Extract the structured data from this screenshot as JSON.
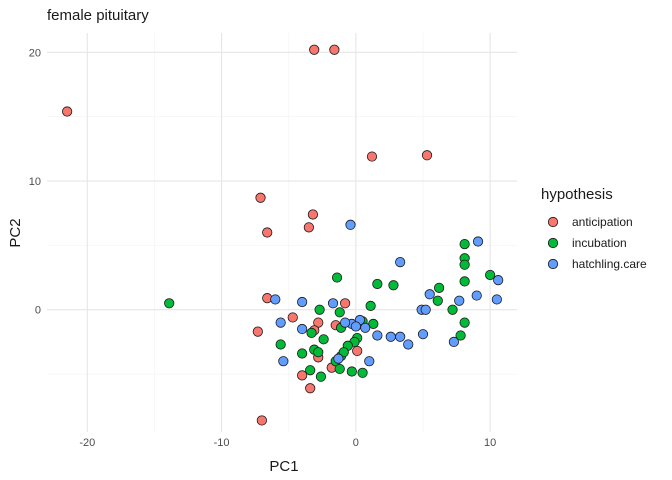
{
  "chart_data": {
    "type": "scatter",
    "title": "female pituitary",
    "xlabel": "PC1",
    "ylabel": "PC2",
    "xlim": [
      -23,
      12
    ],
    "ylim": [
      -9.5,
      21.5
    ],
    "x_ticks": [
      -20,
      -10,
      0,
      10
    ],
    "y_ticks": [
      0,
      10,
      20
    ],
    "x_minor": [
      -15,
      -5,
      5
    ],
    "y_minor": [
      -5,
      5,
      15
    ],
    "grid": true,
    "legend": {
      "title": "hypothesis",
      "position": "right"
    },
    "series": [
      {
        "name": "anticipation",
        "color": "#F8766D",
        "points": [
          [
            -21.5,
            15.4
          ],
          [
            -3.1,
            20.2
          ],
          [
            -1.6,
            20.2
          ],
          [
            1.2,
            11.9
          ],
          [
            5.3,
            12.0
          ],
          [
            -7.1,
            8.7
          ],
          [
            -6.6,
            6.0
          ],
          [
            -3.2,
            7.4
          ],
          [
            -3.5,
            6.4
          ],
          [
            -6.6,
            0.9
          ],
          [
            -4.7,
            -0.6
          ],
          [
            -7.3,
            -1.7
          ],
          [
            -2.8,
            -1.0
          ],
          [
            -0.8,
            0.5
          ],
          [
            -2.8,
            -3.7
          ],
          [
            -4.0,
            -5.1
          ],
          [
            -3.4,
            -6.1
          ],
          [
            -1.8,
            -4.5
          ],
          [
            0.1,
            -3.2
          ],
          [
            -7.0,
            -8.6
          ],
          [
            -1.5,
            -1.2
          ],
          [
            -3.1,
            -1.6
          ]
        ]
      },
      {
        "name": "incubation",
        "color": "#00BA38",
        "points": [
          [
            -13.9,
            0.5
          ],
          [
            -1.4,
            2.5
          ],
          [
            1.6,
            2.0
          ],
          [
            2.8,
            1.9
          ],
          [
            6.2,
            1.7
          ],
          [
            8.1,
            5.1
          ],
          [
            8.1,
            4.0
          ],
          [
            8.1,
            3.5
          ],
          [
            10.0,
            2.7
          ],
          [
            6.1,
            0.7
          ],
          [
            8.1,
            2.2
          ],
          [
            7.2,
            0.0
          ],
          [
            8.1,
            -1.0
          ],
          [
            7.8,
            -2.0
          ],
          [
            1.1,
            0.3
          ],
          [
            -2.7,
            0.0
          ],
          [
            -1.2,
            -0.2
          ],
          [
            -1.1,
            -1.4
          ],
          [
            0.5,
            -0.9
          ],
          [
            1.3,
            -1.1
          ],
          [
            0.1,
            -2.2
          ],
          [
            -0.1,
            -2.5
          ],
          [
            -2.4,
            -2.3
          ],
          [
            -3.3,
            -1.8
          ],
          [
            -3.1,
            -3.1
          ],
          [
            -5.6,
            -2.7
          ],
          [
            -4.0,
            -3.4
          ],
          [
            -2.8,
            -3.3
          ],
          [
            -1.1,
            -3.6
          ],
          [
            -0.6,
            -2.8
          ],
          [
            -1.5,
            -4.0
          ],
          [
            -1.2,
            -4.6
          ],
          [
            -0.3,
            -4.8
          ],
          [
            0.5,
            -4.9
          ],
          [
            -3.4,
            -4.7
          ],
          [
            -2.6,
            -5.2
          ],
          [
            -0.9,
            -3.3
          ]
        ]
      },
      {
        "name": "hatchling.care",
        "color": "#619CFF",
        "points": [
          [
            -0.4,
            6.6
          ],
          [
            3.3,
            3.7
          ],
          [
            9.1,
            5.3
          ],
          [
            10.6,
            2.3
          ],
          [
            10.5,
            0.8
          ],
          [
            9.0,
            1.1
          ],
          [
            7.7,
            0.7
          ],
          [
            5.5,
            1.2
          ],
          [
            4.9,
            0.0
          ],
          [
            5.2,
            0.0
          ],
          [
            -6.0,
            0.8
          ],
          [
            -4.0,
            0.6
          ],
          [
            -1.7,
            0.5
          ],
          [
            -5.6,
            -1.0
          ],
          [
            -4.0,
            -1.5
          ],
          [
            -0.3,
            -1.1
          ],
          [
            0.3,
            -0.8
          ],
          [
            0.7,
            -1.4
          ],
          [
            0.0,
            -1.3
          ],
          [
            1.6,
            -2.0
          ],
          [
            2.6,
            -2.1
          ],
          [
            3.3,
            -2.1
          ],
          [
            3.9,
            -2.7
          ],
          [
            5.0,
            -1.9
          ],
          [
            7.3,
            -2.5
          ],
          [
            -5.4,
            -4.0
          ],
          [
            -1.3,
            -3.8
          ],
          [
            1.0,
            -4.0
          ],
          [
            -0.8,
            -1.0
          ]
        ]
      }
    ]
  }
}
